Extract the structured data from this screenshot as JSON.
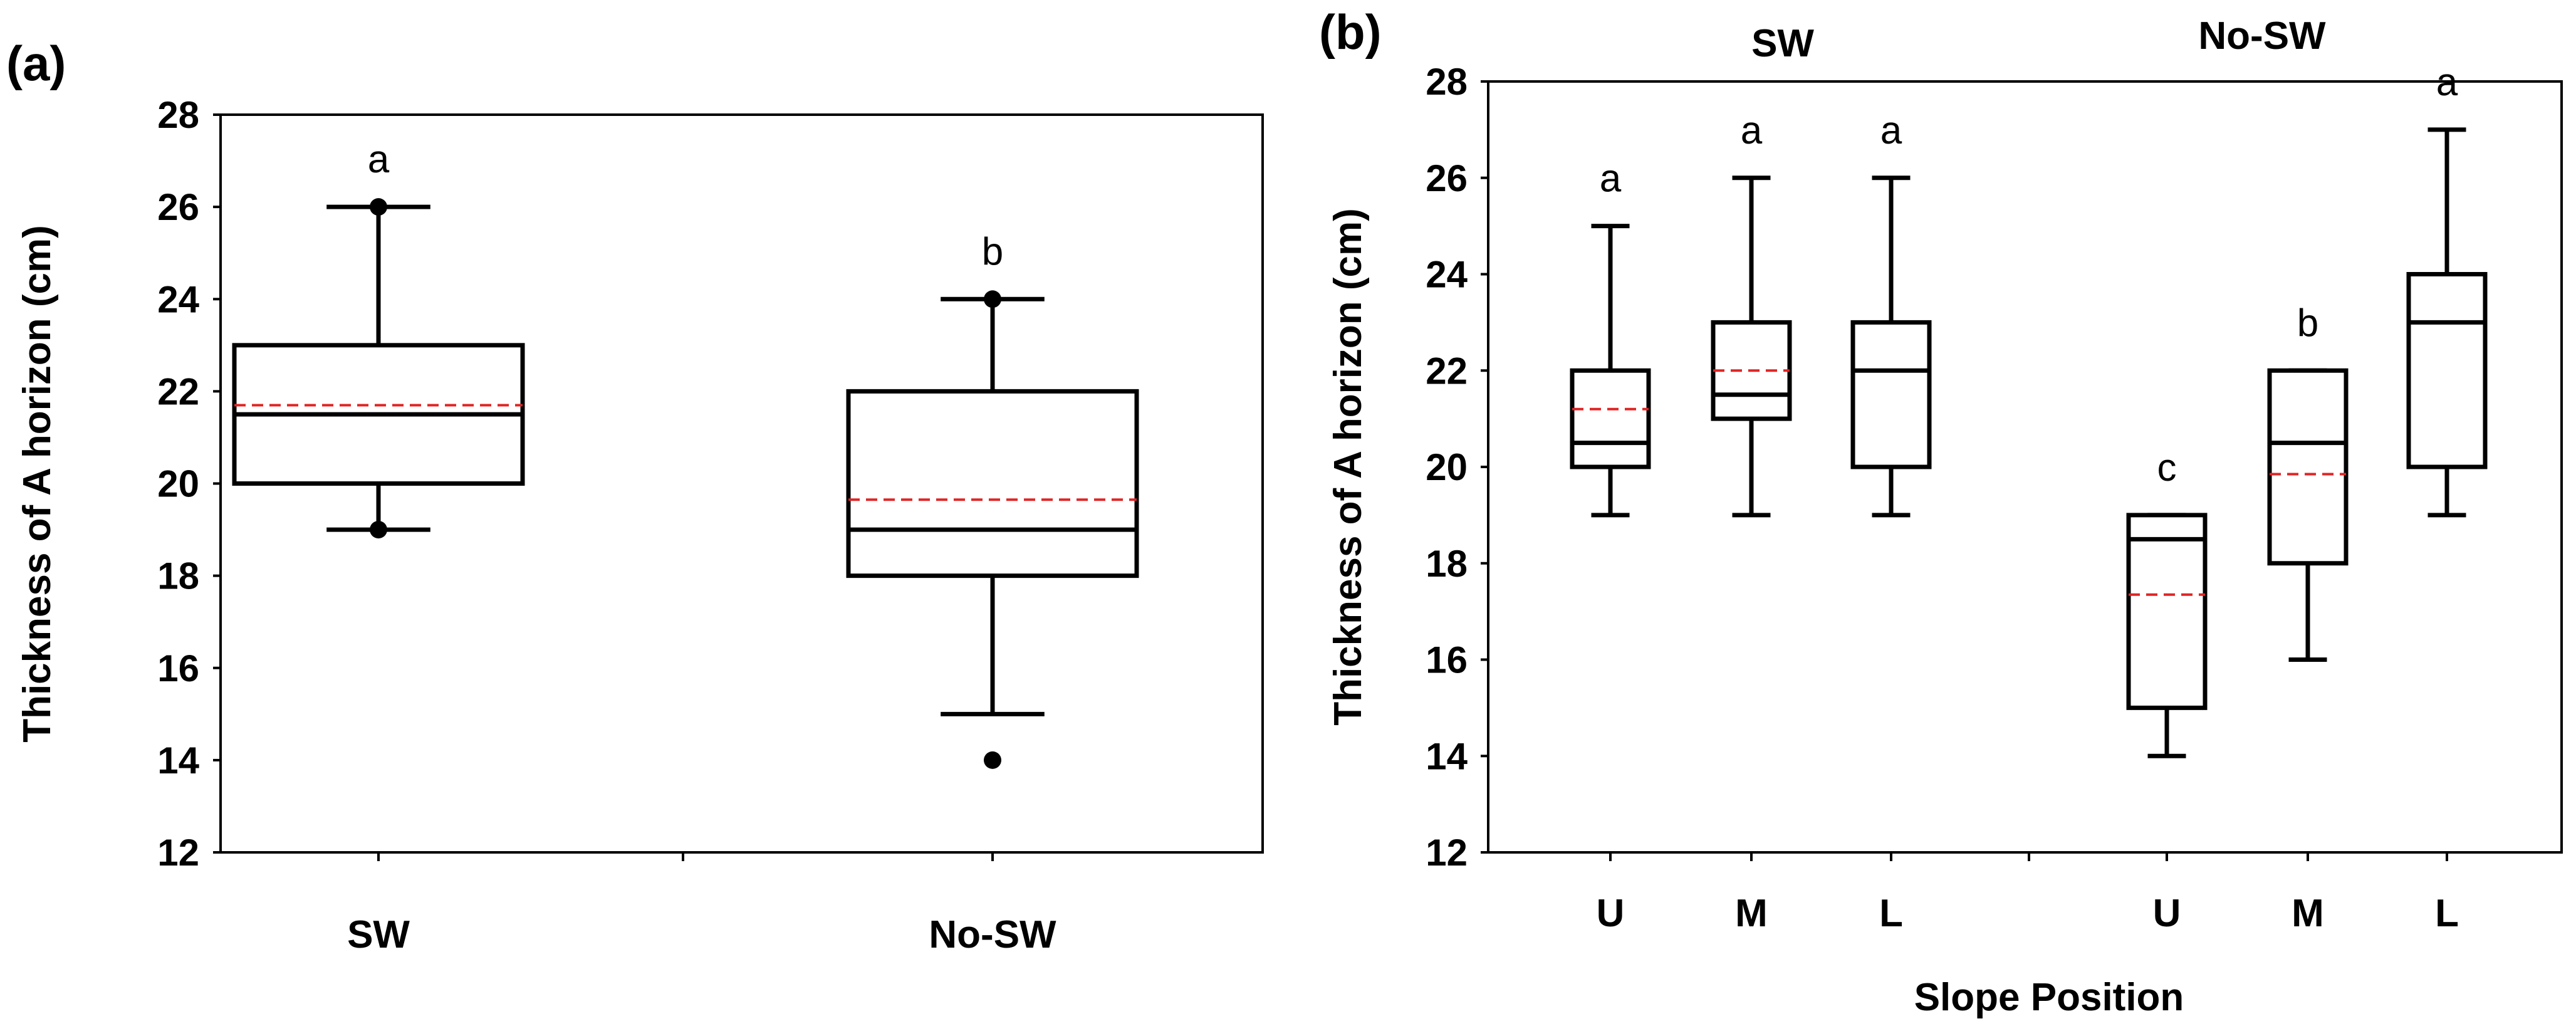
{
  "chart_data": [
    {
      "type": "box",
      "panel_label": "(a)",
      "ylabel": "Thickness of A horizon (cm)",
      "xlabel": "",
      "ylim": [
        12,
        28
      ],
      "yticks": [
        12,
        14,
        16,
        18,
        20,
        22,
        24,
        26,
        28
      ],
      "categories": [
        "SW",
        "No-SW"
      ],
      "boxes": [
        {
          "category": "SW",
          "whisker_low": 19,
          "q1": 20,
          "median": 21.5,
          "q3": 23,
          "whisker_high": 26,
          "mean": 21.7,
          "outliers": [
            19,
            26
          ],
          "letter": "a"
        },
        {
          "category": "No-SW",
          "whisker_low": 15,
          "q1": 18,
          "median": 19,
          "q3": 22,
          "whisker_high": 24,
          "mean": 19.65,
          "outliers": [
            14,
            24
          ],
          "letter": "b"
        }
      ]
    },
    {
      "type": "box",
      "panel_label": "(b)",
      "ylabel": "Thickness of A horizon (cm)",
      "xlabel": "Slope Position",
      "ylim": [
        12,
        28
      ],
      "yticks": [
        12,
        14,
        16,
        18,
        20,
        22,
        24,
        26,
        28
      ],
      "groups": [
        "SW",
        "No-SW"
      ],
      "categories": [
        "U",
        "M",
        "L",
        "U",
        "M",
        "L"
      ],
      "boxes": [
        {
          "group": "SW",
          "category": "U",
          "whisker_low": 19,
          "q1": 20,
          "median": 20.5,
          "q3": 22,
          "whisker_high": 25,
          "mean": 21.2,
          "outliers": [],
          "letter": "a"
        },
        {
          "group": "SW",
          "category": "M",
          "whisker_low": 19,
          "q1": 21,
          "median": 21.5,
          "q3": 23,
          "whisker_high": 26,
          "mean": 22.0,
          "outliers": [],
          "letter": "a"
        },
        {
          "group": "SW",
          "category": "L",
          "whisker_low": 19,
          "q1": 20,
          "median": 22,
          "q3": 23,
          "whisker_high": 26,
          "mean": 22.0,
          "outliers": [],
          "letter": "a"
        },
        {
          "group": "No-SW",
          "category": "U",
          "whisker_low": 14,
          "q1": 15,
          "median": 18.5,
          "q3": 19,
          "whisker_high": 19,
          "mean": 17.35,
          "outliers": [],
          "letter": "c"
        },
        {
          "group": "No-SW",
          "category": "M",
          "whisker_low": 16,
          "q1": 18,
          "median": 20.5,
          "q3": 22,
          "whisker_high": 22,
          "mean": 19.85,
          "outliers": [],
          "letter": "b"
        },
        {
          "group": "No-SW",
          "category": "L",
          "whisker_low": 19,
          "q1": 20,
          "median": 23,
          "q3": 24,
          "whisker_high": 27,
          "mean": 23.0,
          "outliers": [],
          "letter": "a"
        }
      ]
    }
  ],
  "colors": {
    "mean_line": "#e02424",
    "axis": "#000000",
    "background": "#ffffff"
  }
}
